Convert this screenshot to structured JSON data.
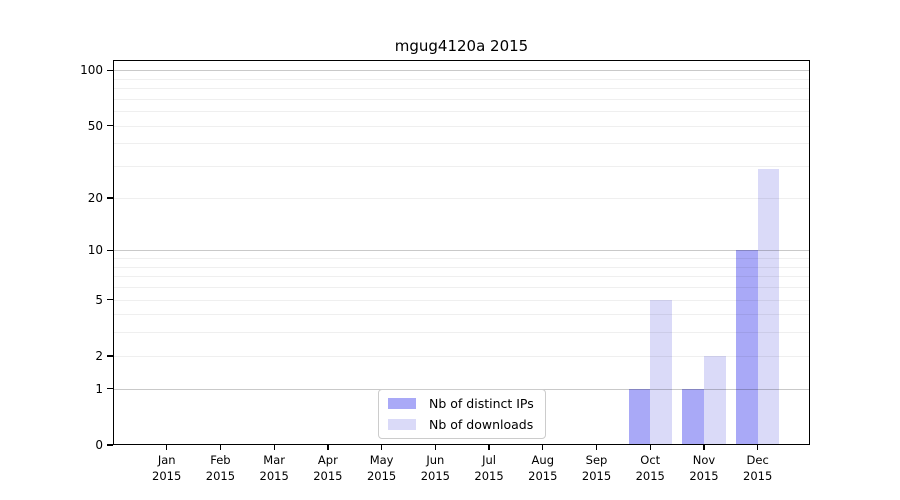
{
  "chart_data": {
    "type": "bar",
    "title": "mgug4120a 2015",
    "xlabel": "",
    "ylabel": "",
    "yscale": "log1p",
    "ylim": [
      0,
      114
    ],
    "grid": "horizontal",
    "legend_position": "inside-bottom-center",
    "background_color": "#ffffff",
    "axis_color": "#000000",
    "categories": [
      "Jan",
      "Feb",
      "Mar",
      "Apr",
      "May",
      "Jun",
      "Jul",
      "Aug",
      "Sep",
      "Oct",
      "Nov",
      "Dec"
    ],
    "category_year": "2015",
    "series": [
      {
        "name": "Nb of distinct IPs",
        "color": "#a9a9f7",
        "values": [
          0,
          0,
          0,
          0,
          0,
          0,
          0,
          0,
          0,
          1,
          1,
          10
        ]
      },
      {
        "name": "Nb of downloads",
        "color": "#dadaf8",
        "values": [
          0,
          0,
          0,
          0,
          0,
          0,
          0,
          0,
          0,
          5,
          2,
          29
        ]
      }
    ],
    "ytick_labels": [
      "0",
      "1",
      "2",
      "5",
      "10",
      "20",
      "50",
      "100"
    ],
    "yticks_labeled": [
      0,
      1,
      2,
      5,
      10,
      20,
      50,
      100
    ],
    "ygrid_major": [
      1,
      10,
      100
    ],
    "ygrid_minor": [
      2,
      3,
      4,
      5,
      6,
      7,
      8,
      9,
      20,
      30,
      40,
      50,
      60,
      70,
      80,
      90
    ]
  }
}
